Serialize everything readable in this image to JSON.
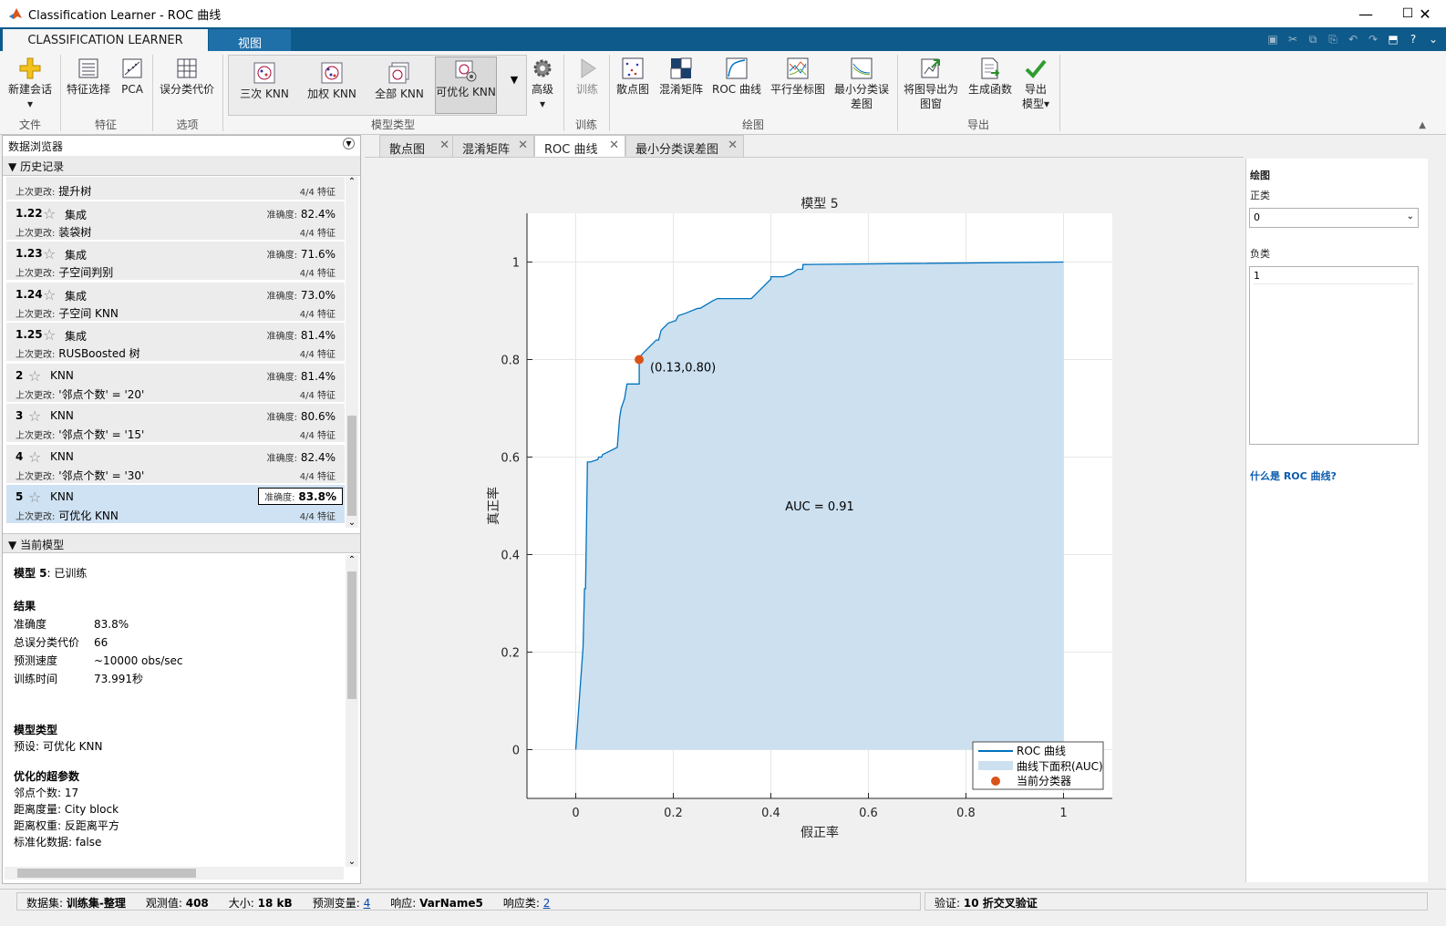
{
  "window": {
    "title": "Classification Learner - ROC 曲线",
    "minimize": "—",
    "maximize": "☐",
    "close": "✕"
  },
  "tabs": {
    "main": "CLASSIFICATION LEARNER",
    "view": "视图"
  },
  "ribbon": {
    "new_session": "新建会话",
    "feature_selection": "特征选择",
    "pca": "PCA",
    "misclass_cost": "误分类代价",
    "gallery": [
      "三次 KNN",
      "加权 KNN",
      "全部 KNN",
      "可优化 KNN"
    ],
    "advanced": "高级",
    "train": "训练",
    "plots": [
      "散点图",
      "混淆矩阵",
      "ROC 曲线",
      "平行坐标图",
      "最小分类误",
      "差图"
    ],
    "export_fig_1": "将图导出为",
    "export_fig_2": "图窗",
    "gen_func": "生成函数",
    "export_model_1": "导出",
    "export_model_2": "模型",
    "groups": {
      "file": "文件",
      "features": "特征",
      "options": "选项",
      "model_type": "模型类型",
      "training": "训练",
      "plots": "绘图",
      "export": "导出"
    }
  },
  "left": {
    "browser_title": "数据浏览器",
    "history_title": "历史记录",
    "current_model_title": "当前模型",
    "history": [
      {
        "num": "",
        "type": "",
        "acc_label": "",
        "acc": "",
        "chg_label": "上次更改:",
        "chg": "提升树",
        "feat": "4/4 特征"
      },
      {
        "num": "1.22",
        "type": "集成",
        "acc_label": "准确度:",
        "acc": "82.4%",
        "chg_label": "上次更改:",
        "chg": "装袋树",
        "feat": "4/4 特征"
      },
      {
        "num": "1.23",
        "type": "集成",
        "acc_label": "准确度:",
        "acc": "71.6%",
        "chg_label": "上次更改:",
        "chg": "子空间判别",
        "feat": "4/4 特征"
      },
      {
        "num": "1.24",
        "type": "集成",
        "acc_label": "准确度:",
        "acc": "73.0%",
        "chg_label": "上次更改:",
        "chg": "子空间 KNN",
        "feat": "4/4 特征"
      },
      {
        "num": "1.25",
        "type": "集成",
        "acc_label": "准确度:",
        "acc": "81.4%",
        "chg_label": "上次更改:",
        "chg": "RUSBoosted 树",
        "feat": "4/4 特征"
      },
      {
        "num": "2",
        "type": "KNN",
        "acc_label": "准确度:",
        "acc": "81.4%",
        "chg_label": "上次更改:",
        "chg": "'邻点个数' = '20'",
        "feat": "4/4 特征"
      },
      {
        "num": "3",
        "type": "KNN",
        "acc_label": "准确度:",
        "acc": "80.6%",
        "chg_label": "上次更改:",
        "chg": "'邻点个数' = '15'",
        "feat": "4/4 特征"
      },
      {
        "num": "4",
        "type": "KNN",
        "acc_label": "准确度:",
        "acc": "82.4%",
        "chg_label": "上次更改:",
        "chg": "'邻点个数' = '30'",
        "feat": "4/4 特征"
      },
      {
        "num": "5",
        "type": "KNN",
        "acc_label": "准确度:",
        "acc": "83.8%",
        "chg_label": "上次更改:",
        "chg": "可优化 KNN",
        "feat": "4/4 特征"
      }
    ],
    "model": {
      "title_bold": "模型 5",
      "title_rest": ": 已训练",
      "results_h": "结果",
      "results": [
        [
          "准确度",
          "83.8%"
        ],
        [
          "总误分类代价",
          "66"
        ],
        [
          "预测速度",
          "~10000 obs/sec"
        ],
        [
          "训练时间",
          "73.991秒"
        ]
      ],
      "type_h": "模型类型",
      "preset": "预设: 可优化 KNN",
      "hyper_h": "优化的超参数",
      "hyper": [
        "邻点个数: 17",
        "距离度量: City block",
        "距离权重: 反距离平方",
        "标准化数据: false"
      ]
    }
  },
  "center_tabs": [
    "散点图",
    "混淆矩阵",
    "ROC 曲线",
    "最小分类误差图"
  ],
  "right": {
    "section": "绘图",
    "positive_label": "正类",
    "positive_value": "0",
    "negative_label": "负类",
    "negative_value": "1",
    "help_link": "什么是 ROC 曲线?"
  },
  "status": {
    "dataset_label": "数据集:",
    "dataset": "训练集-整理",
    "obs_label": "观测值:",
    "obs": "408",
    "size_label": "大小:",
    "size": "18 kB",
    "pred_label": "预测变量:",
    "pred": "4",
    "resp_label": "响应:",
    "resp": "VarName5",
    "classes_label": "响应类:",
    "classes": "2",
    "val_label": "验证:",
    "val": "10 折交叉验证"
  },
  "chart_data": {
    "type": "area",
    "title": "模型 5",
    "xlabel": "假正率",
    "ylabel": "真正率",
    "xlim": [
      -0.1,
      1.1
    ],
    "ylim": [
      -0.1,
      1.1
    ],
    "xticks": [
      0,
      0.2,
      0.4,
      0.6,
      0.8,
      1
    ],
    "yticks": [
      0,
      0.2,
      0.4,
      0.6,
      0.8,
      1
    ],
    "grid": true,
    "legend_position": "bottom-right",
    "auc_text": "AUC = 0.91",
    "point_label": "(0.13,0.80)",
    "current_point": [
      0.13,
      0.8
    ],
    "series": [
      {
        "name": "ROC 曲线",
        "color": "#0072bd",
        "x": [
          0,
          0.015,
          0.018,
          0.02,
          0.022,
          0.024,
          0.024,
          0.03,
          0.045,
          0.047,
          0.053,
          0.055,
          0.085,
          0.085,
          0.09,
          0.093,
          0.1,
          0.105,
          0.11,
          0.13,
          0.13,
          0.135,
          0.145,
          0.15,
          0.165,
          0.17,
          0.175,
          0.19,
          0.205,
          0.21,
          0.225,
          0.25,
          0.255,
          0.28,
          0.29,
          0.36,
          0.38,
          0.4,
          0.4,
          0.41,
          0.425,
          0.44,
          0.455,
          0.465,
          0.466,
          0.47,
          1
        ],
        "y": [
          0,
          0.21,
          0.33,
          0.33,
          0.46,
          0.59,
          0.59,
          0.59,
          0.595,
          0.6,
          0.6,
          0.605,
          0.62,
          0.62,
          0.68,
          0.7,
          0.72,
          0.75,
          0.75,
          0.75,
          0.8,
          0.81,
          0.82,
          0.825,
          0.84,
          0.84,
          0.86,
          0.875,
          0.88,
          0.89,
          0.895,
          0.905,
          0.905,
          0.92,
          0.925,
          0.925,
          0.945,
          0.965,
          0.97,
          0.97,
          0.97,
          0.975,
          0.985,
          0.985,
          0.995,
          0.995,
          1
        ]
      },
      {
        "name": "曲线下面积(AUC)",
        "color": "#cce0f0"
      },
      {
        "name": "当前分类器",
        "color": "#d95319"
      }
    ]
  }
}
